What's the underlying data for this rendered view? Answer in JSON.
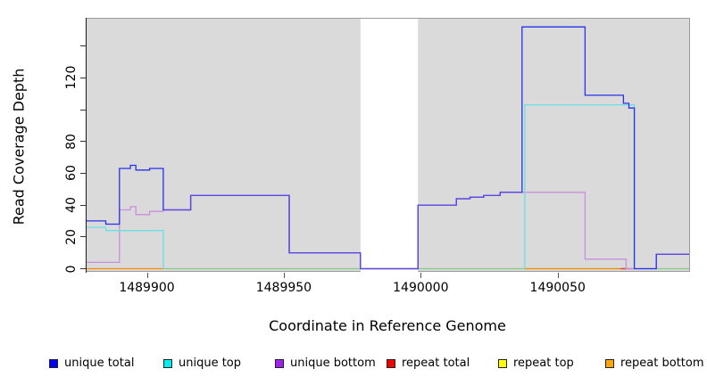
{
  "figure": {
    "xlabel": "Coordinate in Reference Genome",
    "ylabel": "Read Coverage Depth"
  },
  "legend": {
    "items": [
      {
        "label": "unique total",
        "color": "#0000EE"
      },
      {
        "label": "unique top",
        "color": "#00EEEE"
      },
      {
        "label": "unique bottom",
        "color": "#A020F0"
      },
      {
        "label": "repeat total",
        "color": "#EE0000"
      },
      {
        "label": "repeat top",
        "color": "#FFFF00"
      },
      {
        "label": "repeat bottom",
        "color": "#FFA500"
      }
    ]
  },
  "chart_data": {
    "type": "line",
    "subtype": "step-coverage",
    "title": "",
    "xlabel": "Coordinate in Reference Genome",
    "ylabel": "Read Coverage Depth",
    "x_range": [
      1489878,
      1490098
    ],
    "ylim": [
      0,
      158
    ],
    "grid": false,
    "legend_position": "bottom-horizontal",
    "x_ticks": [
      {
        "value": 1489900,
        "label": "1489900"
      },
      {
        "value": 1489950,
        "label": "1489950"
      },
      {
        "value": 1490000,
        "label": "1490000"
      },
      {
        "value": 1490050,
        "label": "1490050"
      }
    ],
    "y_ticks": [
      {
        "value": 0,
        "label": "0"
      },
      {
        "value": 20,
        "label": "20"
      },
      {
        "value": 40,
        "label": "40"
      },
      {
        "value": 60,
        "label": "60"
      },
      {
        "value": 80,
        "label": "80"
      },
      {
        "value": 100,
        "label": ""
      },
      {
        "value": 120,
        "label": "120"
      },
      {
        "value": 140,
        "label": ""
      }
    ],
    "gap_region": {
      "x_start": 1489978,
      "x_end": 1489999,
      "color": "#FFFFFF"
    },
    "colors": {
      "panel_background": "#DADADA",
      "panel_border": "#9a9a9a",
      "axis": "#1a1a1a"
    },
    "series": [
      {
        "name": "baseline-zero-green",
        "color": "#85CB85",
        "steps": [
          [
            1489906,
            0
          ]
        ],
        "x_end": 1490098
      },
      {
        "name": "repeat-bottom-left",
        "color": "#FF8C00",
        "steps": [
          [
            1489878,
            0
          ]
        ],
        "x_end": 1489906
      },
      {
        "name": "repeat-bottom-right",
        "color": "#FF8C00",
        "steps": [
          [
            1490038,
            0
          ]
        ],
        "x_end": 1490077
      },
      {
        "name": "repeat-total-segment",
        "color": "#E23B3B",
        "steps": [
          [
            1490073,
            0
          ]
        ],
        "x_end": 1490078
      },
      {
        "name": "unique-bottom",
        "color": "#C98FDE",
        "steps": [
          [
            1489878,
            4
          ],
          [
            1489890,
            37
          ],
          [
            1489894,
            39
          ],
          [
            1489896,
            34
          ],
          [
            1489901,
            36
          ],
          [
            1489906,
            37
          ],
          [
            1489916,
            46
          ],
          [
            1489952,
            10
          ],
          [
            1489978,
            0
          ],
          [
            1489999,
            40
          ],
          [
            1490013,
            44
          ],
          [
            1490018,
            45
          ],
          [
            1490023,
            46
          ],
          [
            1490029,
            48
          ],
          [
            1490060,
            6
          ],
          [
            1490075,
            0
          ],
          [
            1490086,
            9
          ]
        ],
        "x_end": 1490098
      },
      {
        "name": "unique-top-left",
        "color": "#6ADFE6",
        "steps": [
          [
            1489878,
            26
          ],
          [
            1489885,
            24
          ]
        ],
        "x_end": 1489906,
        "close_to_zero": true
      },
      {
        "name": "unique-top-right",
        "color": "#6ADFE6",
        "steps": [
          [
            1490038,
            103
          ]
        ],
        "x_end": 1490078,
        "open_from_zero": true,
        "close_to_zero": true
      },
      {
        "name": "unique-total",
        "color": "#2531EA",
        "steps": [
          [
            1489878,
            30
          ],
          [
            1489885,
            28
          ],
          [
            1489890,
            63
          ],
          [
            1489894,
            65
          ],
          [
            1489896,
            62
          ],
          [
            1489901,
            63
          ],
          [
            1489906,
            37
          ],
          [
            1489916,
            46
          ],
          [
            1489952,
            10
          ],
          [
            1489978,
            0
          ],
          [
            1489999,
            40
          ],
          [
            1490013,
            44
          ],
          [
            1490018,
            45
          ],
          [
            1490023,
            46
          ],
          [
            1490029,
            48
          ],
          [
            1490037,
            152
          ],
          [
            1490060,
            109
          ],
          [
            1490074,
            104
          ],
          [
            1490076,
            101
          ],
          [
            1490078,
            0
          ],
          [
            1490086,
            9
          ]
        ],
        "x_end": 1490098
      }
    ],
    "total_bottom_overlap": {
      "color": "#5E48E0",
      "source": "unique-total",
      "intervals": [
        [
          1489906,
          1490037
        ],
        [
          1490086,
          1490098
        ]
      ]
    }
  }
}
